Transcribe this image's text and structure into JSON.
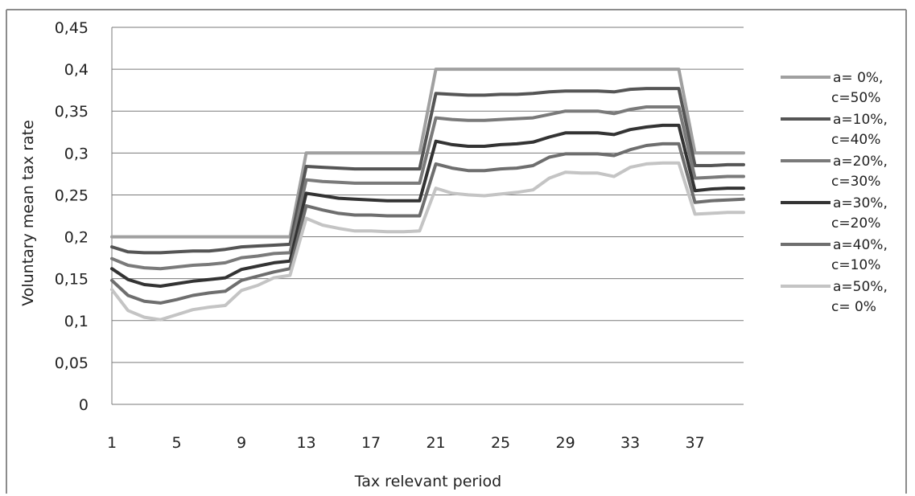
{
  "chart_data": {
    "type": "line",
    "xlabel": "Tax relevant period",
    "ylabel": "Voluntary mean tax rate",
    "x_ticks": [
      "1",
      "5",
      "9",
      "13",
      "17",
      "21",
      "25",
      "29",
      "33",
      "37"
    ],
    "y_ticks": [
      "0",
      "0,05",
      "0,1",
      "0,15",
      "0,2",
      "0,25",
      "0,3",
      "0,35",
      "0,4",
      "0,45"
    ],
    "ylim": [
      0,
      0.45
    ],
    "xlim": [
      1,
      40
    ],
    "grid": true,
    "legend_position": "right",
    "series": [
      {
        "name": "a=  0%, c=50%",
        "label_lines": [
          "a=  0%,",
          "c=50%"
        ],
        "color": "#a0a0a0",
        "y": [
          0.2,
          0.2,
          0.2,
          0.2,
          0.2,
          0.2,
          0.2,
          0.2,
          0.2,
          0.2,
          0.2,
          0.2,
          0.3,
          0.3,
          0.3,
          0.3,
          0.3,
          0.3,
          0.3,
          0.3,
          0.4,
          0.4,
          0.4,
          0.4,
          0.4,
          0.4,
          0.4,
          0.4,
          0.4,
          0.4,
          0.4,
          0.4,
          0.4,
          0.4,
          0.4,
          0.4,
          0.3,
          0.3,
          0.3,
          0.3
        ]
      },
      {
        "name": "a=10%, c=40%",
        "label_lines": [
          "a=10%,",
          "c=40%"
        ],
        "color": "#555555",
        "y": [
          0.188,
          0.182,
          0.181,
          0.181,
          0.182,
          0.183,
          0.183,
          0.185,
          0.188,
          0.189,
          0.19,
          0.191,
          0.284,
          0.283,
          0.282,
          0.281,
          0.281,
          0.281,
          0.281,
          0.281,
          0.371,
          0.37,
          0.369,
          0.369,
          0.37,
          0.37,
          0.371,
          0.373,
          0.374,
          0.374,
          0.374,
          0.373,
          0.376,
          0.377,
          0.377,
          0.377,
          0.285,
          0.285,
          0.286,
          0.286
        ]
      },
      {
        "name": "a=20%, c=30%",
        "label_lines": [
          "a=20%,",
          "c=30%"
        ],
        "color": "#7a7a7a",
        "y": [
          0.174,
          0.166,
          0.163,
          0.162,
          0.164,
          0.166,
          0.167,
          0.169,
          0.175,
          0.177,
          0.18,
          0.181,
          0.268,
          0.266,
          0.265,
          0.264,
          0.264,
          0.264,
          0.264,
          0.264,
          0.342,
          0.34,
          0.339,
          0.339,
          0.34,
          0.341,
          0.342,
          0.346,
          0.35,
          0.35,
          0.35,
          0.347,
          0.352,
          0.355,
          0.355,
          0.355,
          0.27,
          0.271,
          0.272,
          0.272
        ]
      },
      {
        "name": "a=30%, c=20%",
        "label_lines": [
          "a=30%,",
          "c=20%"
        ],
        "color": "#333333",
        "y": [
          0.162,
          0.149,
          0.143,
          0.141,
          0.144,
          0.147,
          0.149,
          0.151,
          0.161,
          0.165,
          0.169,
          0.171,
          0.252,
          0.249,
          0.246,
          0.245,
          0.244,
          0.243,
          0.243,
          0.243,
          0.314,
          0.31,
          0.308,
          0.308,
          0.31,
          0.311,
          0.313,
          0.319,
          0.324,
          0.324,
          0.324,
          0.322,
          0.328,
          0.331,
          0.333,
          0.333,
          0.255,
          0.257,
          0.258,
          0.258
        ]
      },
      {
        "name": "a=40%, c=10%",
        "label_lines": [
          "a=40%,",
          "c=10%"
        ],
        "color": "#6e6e6e",
        "y": [
          0.148,
          0.13,
          0.123,
          0.121,
          0.125,
          0.13,
          0.133,
          0.135,
          0.148,
          0.153,
          0.158,
          0.162,
          0.237,
          0.232,
          0.228,
          0.226,
          0.226,
          0.225,
          0.225,
          0.225,
          0.287,
          0.282,
          0.279,
          0.279,
          0.281,
          0.282,
          0.285,
          0.295,
          0.299,
          0.299,
          0.299,
          0.297,
          0.304,
          0.309,
          0.311,
          0.311,
          0.241,
          0.243,
          0.244,
          0.245
        ]
      },
      {
        "name": "a=50%, c=  0%",
        "label_lines": [
          "a=50%,",
          "c=  0%"
        ],
        "color": "#c4c4c4",
        "y": [
          0.137,
          0.112,
          0.104,
          0.101,
          0.107,
          0.113,
          0.116,
          0.118,
          0.136,
          0.142,
          0.151,
          0.154,
          0.222,
          0.214,
          0.21,
          0.207,
          0.207,
          0.206,
          0.206,
          0.207,
          0.258,
          0.252,
          0.25,
          0.249,
          0.251,
          0.253,
          0.256,
          0.27,
          0.277,
          0.276,
          0.276,
          0.272,
          0.283,
          0.287,
          0.288,
          0.288,
          0.227,
          0.228,
          0.229,
          0.229
        ]
      }
    ]
  }
}
